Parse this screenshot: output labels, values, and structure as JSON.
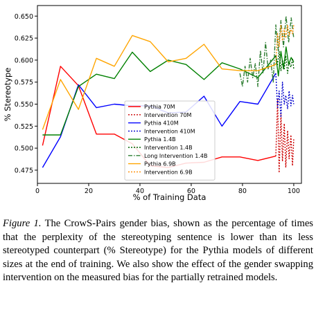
{
  "chart_data": {
    "type": "line",
    "xlabel": "% of Training Data",
    "ylabel": "% Stereotype",
    "xlim": [
      0,
      103
    ],
    "ylim": [
      0.46,
      0.662
    ],
    "xticks": [
      0,
      20,
      40,
      60,
      80,
      100
    ],
    "yticks": [
      0.475,
      0.5,
      0.525,
      0.55,
      0.575,
      0.6,
      0.625,
      0.65
    ],
    "ytick_labels": [
      "0.475",
      "0.500",
      "0.525",
      "0.550",
      "0.575",
      "0.600",
      "0.625",
      "0.650"
    ],
    "legend_position": "lower center",
    "grid": false,
    "series": [
      {
        "name": "Pythia 70M",
        "color": "#ff0000",
        "style": "solid",
        "x": [
          2,
          9,
          16,
          23,
          30,
          37,
          44,
          51,
          58,
          65,
          72,
          79,
          86,
          93
        ],
        "y": [
          0.503,
          0.593,
          0.571,
          0.516,
          0.516,
          0.505,
          0.48,
          0.478,
          0.483,
          0.484,
          0.49,
          0.49,
          0.486,
          0.491
        ]
      },
      {
        "name": "Intervention 70M",
        "color": "#cc0000",
        "style": "dotted",
        "x": [
          93,
          93.7,
          94.3,
          95,
          95.6,
          96.3,
          96.9,
          97.6,
          98.2,
          98.9,
          99.5,
          100
        ],
        "y": [
          0.491,
          0.555,
          0.472,
          0.54,
          0.485,
          0.528,
          0.478,
          0.52,
          0.488,
          0.515,
          0.48,
          0.51
        ]
      },
      {
        "name": "Pythia 410M",
        "color": "#0000ff",
        "style": "solid",
        "x": [
          2,
          9,
          16,
          23,
          30,
          37,
          44,
          51,
          58,
          65,
          72,
          79,
          86,
          93
        ],
        "y": [
          0.478,
          0.513,
          0.572,
          0.546,
          0.55,
          0.548,
          0.548,
          0.54,
          0.541,
          0.559,
          0.525,
          0.553,
          0.55,
          0.585
        ]
      },
      {
        "name": "Intervention 410M",
        "color": "#0000cc",
        "style": "dotted",
        "x": [
          93,
          93.7,
          94.3,
          95,
          95.6,
          96.3,
          96.9,
          97.6,
          98.2,
          98.9,
          99.5,
          100
        ],
        "y": [
          0.585,
          0.545,
          0.565,
          0.535,
          0.575,
          0.55,
          0.56,
          0.545,
          0.565,
          0.548,
          0.56,
          0.55
        ]
      },
      {
        "name": "Pythia 1.4B",
        "color": "#008000",
        "style": "solid",
        "x": [
          2,
          9,
          16,
          23,
          30,
          37,
          44,
          51,
          58,
          65,
          72,
          79,
          86,
          93,
          94,
          95,
          96,
          97,
          98,
          99,
          100
        ],
        "y": [
          0.515,
          0.515,
          0.57,
          0.584,
          0.579,
          0.609,
          0.587,
          0.6,
          0.595,
          0.578,
          0.597,
          0.59,
          0.58,
          0.605,
          0.582,
          0.61,
          0.59,
          0.615,
          0.595,
          0.603,
          0.598
        ]
      },
      {
        "name": "Intervention 1.4B",
        "color": "#006400",
        "style": "dotted",
        "x": [
          93,
          93.7,
          94.3,
          95,
          95.6,
          96.3,
          96.9,
          97.6,
          98.2,
          98.9,
          99.5,
          100
        ],
        "y": [
          0.605,
          0.595,
          0.61,
          0.588,
          0.6,
          0.59,
          0.605,
          0.585,
          0.598,
          0.592,
          0.602,
          0.59
        ]
      },
      {
        "name": "Long Intervention 1.4B",
        "color": "#2e7d32",
        "style": "dashdot",
        "x": [
          79,
          80,
          81,
          82,
          83,
          84,
          85,
          86,
          87,
          88,
          89,
          90,
          91,
          92,
          93,
          94,
          95,
          96,
          97,
          98,
          99,
          100
        ],
        "y": [
          0.585,
          0.57,
          0.593,
          0.575,
          0.602,
          0.58,
          0.596,
          0.57,
          0.611,
          0.585,
          0.62,
          0.59,
          0.6,
          0.575,
          0.64,
          0.61,
          0.645,
          0.615,
          0.65,
          0.62,
          0.648,
          0.625
        ]
      },
      {
        "name": "Pythia 6.9B",
        "color": "#ffa500",
        "style": "solid",
        "x": [
          2,
          9,
          16,
          23,
          30,
          37,
          44,
          51,
          58,
          65,
          72,
          79,
          86,
          93
        ],
        "y": [
          0.521,
          0.578,
          0.544,
          0.602,
          0.593,
          0.628,
          0.621,
          0.598,
          0.602,
          0.618,
          0.59,
          0.588,
          0.588,
          0.595
        ]
      },
      {
        "name": "Intervention 6.9B",
        "color": "#ff8c00",
        "style": "dotted",
        "x": [
          93,
          93.7,
          94.3,
          95,
          95.6,
          96.3,
          96.9,
          97.6,
          98.2,
          98.9,
          99.5,
          100
        ],
        "y": [
          0.595,
          0.63,
          0.615,
          0.64,
          0.622,
          0.636,
          0.625,
          0.64,
          0.628,
          0.635,
          0.63,
          0.64
        ]
      }
    ]
  },
  "caption": {
    "label": "Figure 1.",
    "text": "The CrowS-Pairs gender bias, shown as the percentage of times that the perplexity of the stereotyping sentence is lower than its less stereotyped counterpart (% Stereotype) for the Pythia models of different sizes at the end of training. We also show the effect of the gender swapping intervention on the measured bias for the partially retrained models."
  }
}
